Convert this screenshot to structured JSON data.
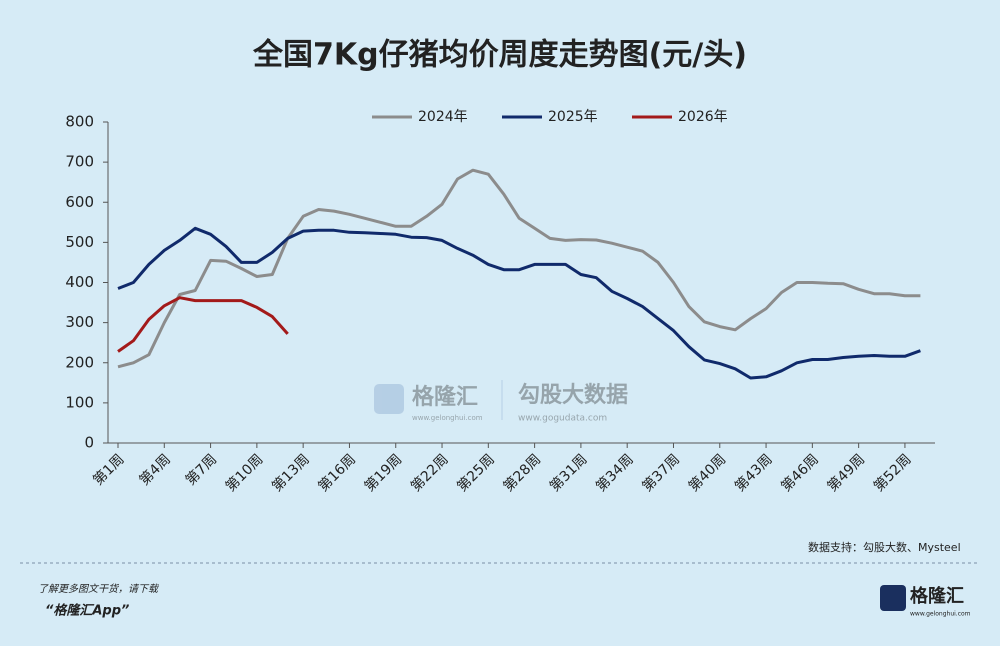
{
  "chart_data": {
    "type": "line",
    "title": "全国7Kg仔猪均价周度走势图(元/头)",
    "categories": [
      "第1周",
      null,
      null,
      "第4周",
      null,
      null,
      "第7周",
      null,
      null,
      "第10周",
      null,
      null,
      "第13周",
      null,
      null,
      "第16周",
      null,
      null,
      "第19周",
      null,
      null,
      "第22周",
      null,
      null,
      "第25周",
      null,
      null,
      "第28周",
      null,
      null,
      "第31周",
      null,
      null,
      "第34周",
      null,
      null,
      "第37周",
      null,
      null,
      "第40周",
      null,
      null,
      "第43周",
      null,
      null,
      "第46周",
      null,
      null,
      "第49周",
      null,
      null,
      "第52周",
      null
    ],
    "series": [
      {
        "name": "2024年",
        "color": "#8c8c8c",
        "values": [
          190,
          200,
          220,
          300,
          370,
          380,
          455,
          453,
          435,
          415,
          420,
          510,
          565,
          582,
          578,
          570,
          560,
          550,
          540,
          540,
          565,
          595,
          658,
          680,
          670,
          620,
          560,
          535,
          510,
          505,
          507,
          506,
          498,
          488,
          478,
          450,
          400,
          340,
          302,
          290,
          282,
          310,
          335,
          375,
          400,
          400,
          398,
          397,
          383,
          372,
          372,
          367,
          367
        ]
      },
      {
        "name": "2025年",
        "color": "#102a6b",
        "values": [
          385,
          400,
          445,
          480,
          505,
          535,
          520,
          490,
          450,
          450,
          475,
          510,
          528,
          530,
          530,
          525,
          524,
          522,
          520,
          513,
          512,
          505,
          485,
          468,
          445,
          432,
          432,
          445,
          445,
          445,
          420,
          412,
          378,
          360,
          340,
          310,
          280,
          240,
          207,
          198,
          185,
          162,
          165,
          180,
          200,
          208,
          208,
          213,
          216,
          218,
          216,
          216,
          230
        ]
      },
      {
        "name": "2026年",
        "color": "#a31a1a",
        "values": [
          228,
          255,
          308,
          342,
          362,
          355,
          355,
          355,
          355,
          338,
          315,
          272,
          null,
          null,
          null,
          null,
          null,
          null,
          null,
          null,
          null,
          null,
          null,
          null,
          null,
          null,
          null,
          null,
          null,
          null,
          null,
          null,
          null,
          null,
          null,
          null,
          null,
          null,
          null,
          null,
          null,
          null,
          null,
          null,
          null,
          null,
          null,
          null,
          null,
          null,
          null,
          null,
          null
        ]
      }
    ],
    "ylim": [
      0,
      800
    ],
    "yticks": [
      0,
      100,
      200,
      300,
      400,
      500,
      600,
      700,
      800
    ],
    "legend": "top",
    "source": "数据支持：勾股大数、Mysteel"
  },
  "watermark": {
    "brand": "格隆汇",
    "brand_url": "www.gelonghui.com",
    "partner": "勾股大数据",
    "partner_url": "www.gogudata.com"
  },
  "footer": {
    "line1": "了解更多图文干货，请下载",
    "line2": "“格隆汇App”",
    "logo": "格隆汇",
    "logo_url": "www.gelonghui.com"
  }
}
